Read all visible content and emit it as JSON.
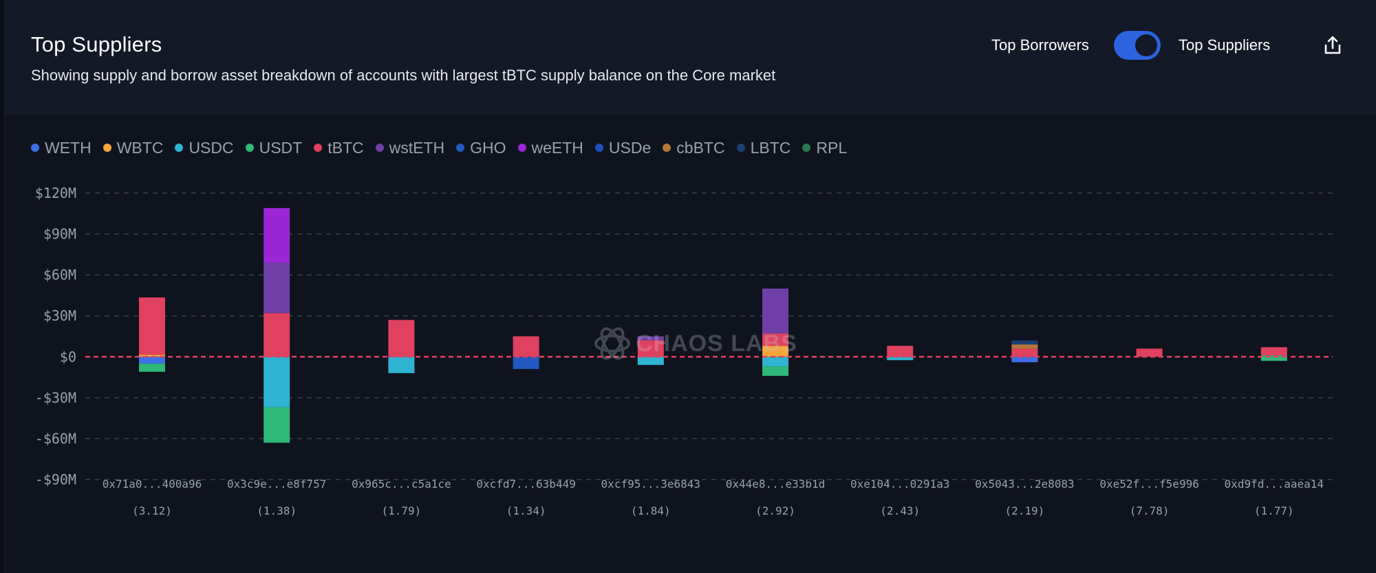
{
  "header": {
    "title": "Top Suppliers",
    "subtitle": "Showing supply and borrow asset breakdown of accounts with largest tBTC supply balance on the Core market",
    "toggle_left_label": "Top Borrowers",
    "toggle_right_label": "Top Suppliers",
    "toggle_on": true
  },
  "watermark": {
    "text": "CHAOS LABS"
  },
  "colors": {
    "WETH": "#3f6fe6",
    "WBTC": "#f5a53a",
    "USDC": "#2fb3d3",
    "USDT": "#2fb878",
    "tBTC": "#e0415f",
    "wstETH": "#6f3fa6",
    "GHO": "#2357c2",
    "weETH": "#9a26d6",
    "USDe": "#1e4fc0",
    "cbBTC": "#b3773a",
    "LBTC": "#1b3f72",
    "RPL": "#2b7a52",
    "zero_line": "#e0415f",
    "grid": "#3a3f4d",
    "accent": "#2c63e0"
  },
  "chart_data": {
    "type": "bar",
    "stacked": true,
    "legend": [
      "WETH",
      "WBTC",
      "USDC",
      "USDT",
      "tBTC",
      "wstETH",
      "GHO",
      "weETH",
      "USDe",
      "cbBTC",
      "LBTC",
      "RPL"
    ],
    "legend_position": "top-left",
    "ylim": [
      -90,
      120
    ],
    "yticks": [
      120,
      90,
      60,
      30,
      0,
      -30,
      -60,
      -90
    ],
    "ytick_labels": [
      "$120M",
      "$90M",
      "$60M",
      "$30M",
      "$0",
      "-$30M",
      "-$60M",
      "-$90M"
    ],
    "grid": true,
    "categories": [
      "0x71a0...400a96",
      "0x3c9e...e8f757",
      "0x965c...c5a1ce",
      "0xcfd7...63b449",
      "0xcf95...3e6843",
      "0x44e8...e33b1d",
      "0xe104...0291a3",
      "0x5043...2e8083",
      "0xe52f...f5e996",
      "0xd9fd...aaea14"
    ],
    "sublabels": [
      "(3.12)",
      "(1.38)",
      "(1.79)",
      "(1.34)",
      "(1.84)",
      "(2.92)",
      "(2.43)",
      "(2.19)",
      "(7.78)",
      "(1.77)"
    ],
    "stacks": [
      {
        "positive": [
          {
            "asset": "WBTC",
            "value": 1.5
          },
          {
            "asset": "tBTC",
            "value": 42
          }
        ],
        "negative": [
          {
            "asset": "WETH",
            "value": 5
          },
          {
            "asset": "USDT",
            "value": 6
          }
        ]
      },
      {
        "positive": [
          {
            "asset": "tBTC",
            "value": 32
          },
          {
            "asset": "wstETH",
            "value": 37
          },
          {
            "asset": "weETH",
            "value": 40
          }
        ],
        "negative": [
          {
            "asset": "USDC",
            "value": 37
          },
          {
            "asset": "USDT",
            "value": 26
          }
        ]
      },
      {
        "positive": [
          {
            "asset": "tBTC",
            "value": 27
          }
        ],
        "negative": [
          {
            "asset": "USDC",
            "value": 12
          }
        ]
      },
      {
        "positive": [
          {
            "asset": "tBTC",
            "value": 15
          }
        ],
        "negative": [
          {
            "asset": "GHO",
            "value": 9
          }
        ]
      },
      {
        "positive": [
          {
            "asset": "tBTC",
            "value": 12
          },
          {
            "asset": "wstETH",
            "value": 3
          }
        ],
        "negative": [
          {
            "asset": "USDC",
            "value": 6
          }
        ]
      },
      {
        "positive": [
          {
            "asset": "WBTC",
            "value": 8
          },
          {
            "asset": "tBTC",
            "value": 9
          },
          {
            "asset": "wstETH",
            "value": 33
          }
        ],
        "negative": [
          {
            "asset": "USDC",
            "value": 7
          },
          {
            "asset": "USDT",
            "value": 7
          }
        ]
      },
      {
        "positive": [
          {
            "asset": "tBTC",
            "value": 8
          }
        ],
        "negative": [
          {
            "asset": "USDC",
            "value": 2.5
          }
        ]
      },
      {
        "positive": [
          {
            "asset": "tBTC",
            "value": 6
          },
          {
            "asset": "cbBTC",
            "value": 3
          },
          {
            "asset": "LBTC",
            "value": 3
          }
        ],
        "negative": [
          {
            "asset": "WETH",
            "value": 4
          }
        ]
      },
      {
        "positive": [
          {
            "asset": "tBTC",
            "value": 6
          }
        ],
        "negative": []
      },
      {
        "positive": [
          {
            "asset": "USDT",
            "value": 1
          },
          {
            "asset": "tBTC",
            "value": 6
          }
        ],
        "negative": [
          {
            "asset": "USDT",
            "value": 3
          }
        ]
      }
    ]
  }
}
